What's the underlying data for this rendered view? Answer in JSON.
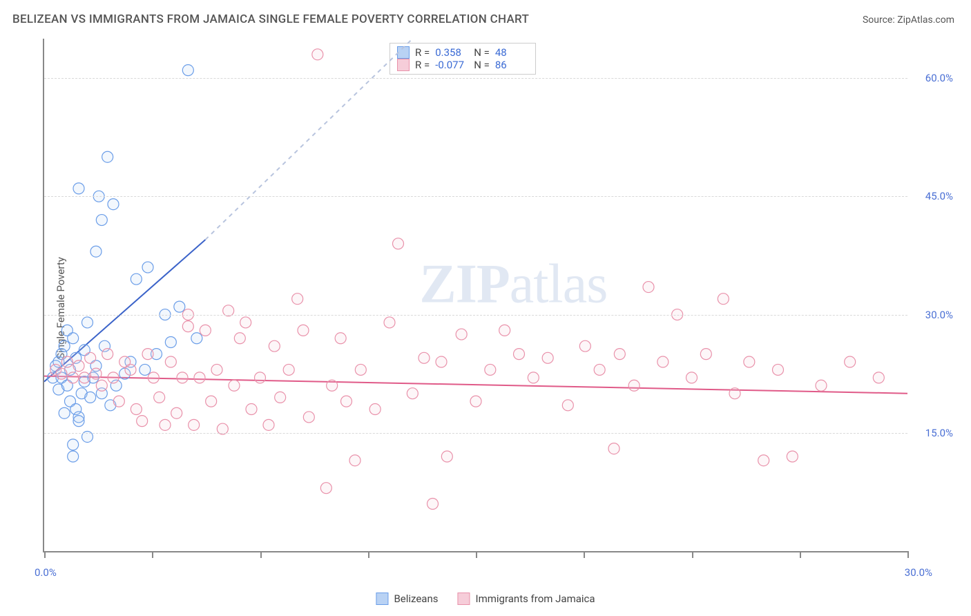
{
  "header": {
    "title": "BELIZEAN VS IMMIGRANTS FROM JAMAICA SINGLE FEMALE POVERTY CORRELATION CHART",
    "source_prefix": "Source: ",
    "source_name": "ZipAtlas.com"
  },
  "chart": {
    "type": "scatter",
    "ylabel": "Single Female Poverty",
    "watermark": "ZIPatlas",
    "xlim": [
      0,
      30
    ],
    "ylim": [
      0,
      65
    ],
    "xtick_label_left": "0.0%",
    "xtick_label_right": "30.0%",
    "xticks": [
      0,
      3.75,
      7.5,
      11.25,
      15,
      18.75,
      22.5,
      26.25,
      30
    ],
    "yticks": [
      {
        "v": 15,
        "label": "15.0%"
      },
      {
        "v": 30,
        "label": "30.0%"
      },
      {
        "v": 45,
        "label": "45.0%"
      },
      {
        "v": 60,
        "label": "60.0%"
      }
    ],
    "grid_color": "#d8d8d8",
    "axis_color": "#888888",
    "label_color": "#4a6fd4",
    "background_color": "#ffffff",
    "marker_radius": 8,
    "marker_stroke_width": 1.2,
    "marker_fill_opacity": 0.18,
    "series": [
      {
        "name": "Belizeans",
        "color_stroke": "#6a9de8",
        "color_fill": "#b9d2f4",
        "R": 0.358,
        "N": 48,
        "trend": {
          "x1": 0,
          "y1": 21.5,
          "x2_solid": 5.6,
          "y2_solid": 39.5,
          "x2_dash": 12.8,
          "y2_dash": 65,
          "color": "#3b63c9",
          "dash_color": "#b8c4de",
          "width": 2
        },
        "points": [
          [
            0.3,
            22
          ],
          [
            0.4,
            23.5
          ],
          [
            0.5,
            20.5
          ],
          [
            0.5,
            24
          ],
          [
            0.6,
            25
          ],
          [
            0.6,
            22
          ],
          [
            0.7,
            17.5
          ],
          [
            0.7,
            26
          ],
          [
            0.8,
            21
          ],
          [
            0.8,
            28
          ],
          [
            0.9,
            19
          ],
          [
            0.9,
            23
          ],
          [
            1.0,
            13.5
          ],
          [
            1.0,
            27
          ],
          [
            1.1,
            18
          ],
          [
            1.1,
            24.5
          ],
          [
            1.2,
            17
          ],
          [
            1.2,
            46
          ],
          [
            1.3,
            20
          ],
          [
            1.4,
            21.5
          ],
          [
            1.4,
            25.5
          ],
          [
            1.5,
            29
          ],
          [
            1.6,
            19.5
          ],
          [
            1.7,
            22
          ],
          [
            1.8,
            38
          ],
          [
            1.8,
            23.5
          ],
          [
            1.9,
            45
          ],
          [
            2.0,
            20
          ],
          [
            2.1,
            26
          ],
          [
            2.2,
            50
          ],
          [
            2.3,
            18.5
          ],
          [
            2.4,
            44
          ],
          [
            2.5,
            21
          ],
          [
            2.8,
            22.5
          ],
          [
            3.0,
            24
          ],
          [
            3.2,
            34.5
          ],
          [
            3.5,
            23
          ],
          [
            3.6,
            36
          ],
          [
            3.9,
            25
          ],
          [
            4.2,
            30
          ],
          [
            4.4,
            26.5
          ],
          [
            4.7,
            31
          ],
          [
            5.0,
            61
          ],
          [
            5.3,
            27
          ],
          [
            1.0,
            12
          ],
          [
            1.2,
            16.5
          ],
          [
            1.5,
            14.5
          ],
          [
            2.0,
            42
          ]
        ]
      },
      {
        "name": "Immigrants from Jamaica",
        "color_stroke": "#e991aa",
        "color_fill": "#f6cdd9",
        "R": -0.077,
        "N": 86,
        "trend": {
          "x1": 0,
          "y1": 22.2,
          "x2_solid": 30,
          "y2_solid": 20.0,
          "color": "#e05a88",
          "width": 2
        },
        "points": [
          [
            0.4,
            23
          ],
          [
            0.6,
            22.5
          ],
          [
            0.8,
            24
          ],
          [
            1.0,
            22
          ],
          [
            1.2,
            23.5
          ],
          [
            1.4,
            22
          ],
          [
            1.6,
            24.5
          ],
          [
            1.8,
            22.5
          ],
          [
            2.0,
            21
          ],
          [
            2.2,
            25
          ],
          [
            2.4,
            22
          ],
          [
            2.6,
            19
          ],
          [
            2.8,
            24
          ],
          [
            3.0,
            23
          ],
          [
            3.2,
            18
          ],
          [
            3.4,
            16.5
          ],
          [
            3.6,
            25
          ],
          [
            3.8,
            22
          ],
          [
            4.0,
            19.5
          ],
          [
            4.2,
            16
          ],
          [
            4.4,
            24
          ],
          [
            4.6,
            17.5
          ],
          [
            4.8,
            22
          ],
          [
            5.0,
            28.5
          ],
          [
            5.2,
            16
          ],
          [
            5.4,
            22
          ],
          [
            5.6,
            28
          ],
          [
            5.8,
            19
          ],
          [
            6.0,
            23
          ],
          [
            6.2,
            15.5
          ],
          [
            6.4,
            30.5
          ],
          [
            6.6,
            21
          ],
          [
            6.8,
            27
          ],
          [
            7.0,
            29
          ],
          [
            7.2,
            18
          ],
          [
            7.5,
            22
          ],
          [
            7.8,
            16
          ],
          [
            8.0,
            26
          ],
          [
            8.2,
            19.5
          ],
          [
            8.5,
            23
          ],
          [
            8.8,
            32
          ],
          [
            9.0,
            28
          ],
          [
            9.2,
            17
          ],
          [
            9.5,
            63
          ],
          [
            9.8,
            8
          ],
          [
            10.0,
            21
          ],
          [
            10.3,
            27
          ],
          [
            10.5,
            19
          ],
          [
            10.8,
            11.5
          ],
          [
            11.0,
            23
          ],
          [
            11.5,
            18
          ],
          [
            12.0,
            29
          ],
          [
            12.3,
            39
          ],
          [
            12.8,
            20
          ],
          [
            13.2,
            24.5
          ],
          [
            13.5,
            6
          ],
          [
            13.8,
            24
          ],
          [
            14.0,
            12
          ],
          [
            14.5,
            27.5
          ],
          [
            15.0,
            19
          ],
          [
            15.5,
            23
          ],
          [
            16.0,
            28
          ],
          [
            16.5,
            25
          ],
          [
            17.0,
            22
          ],
          [
            17.5,
            24.5
          ],
          [
            18.2,
            18.5
          ],
          [
            18.8,
            26
          ],
          [
            19.3,
            23
          ],
          [
            19.8,
            13
          ],
          [
            20.0,
            25
          ],
          [
            20.5,
            21
          ],
          [
            21.0,
            33.5
          ],
          [
            21.5,
            24
          ],
          [
            22.0,
            30
          ],
          [
            22.5,
            22
          ],
          [
            23.0,
            25
          ],
          [
            23.6,
            32
          ],
          [
            24.0,
            20
          ],
          [
            24.5,
            24
          ],
          [
            25.0,
            11.5
          ],
          [
            25.5,
            23
          ],
          [
            26.0,
            12
          ],
          [
            27.0,
            21
          ],
          [
            28.0,
            24
          ],
          [
            29.0,
            22
          ],
          [
            5.0,
            30
          ]
        ]
      }
    ],
    "legend": {
      "items": [
        {
          "label": "Belizeans",
          "stroke": "#6a9de8",
          "fill": "#b9d2f4"
        },
        {
          "label": "Immigrants from Jamaica",
          "stroke": "#e991aa",
          "fill": "#f6cdd9"
        }
      ]
    },
    "stats_box": {
      "R_label": "R =",
      "N_label": "N ="
    }
  }
}
